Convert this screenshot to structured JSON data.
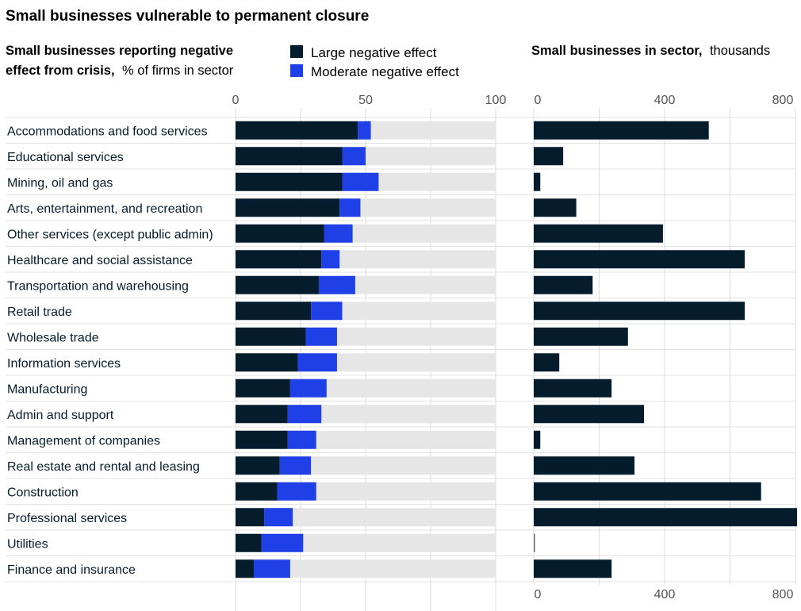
{
  "chart_data": {
    "title": "Small businesses vulnerable to permanent closure",
    "type": "bar",
    "categories": [
      "Accommodations and food services",
      "Educational services",
      "Mining, oil and gas",
      "Arts, entertainment, and recreation",
      "Other services (except public admin)",
      "Healthcare and social assistance",
      "Transportation and warehousing",
      "Retail trade",
      "Wholesale trade",
      "Information services",
      "Manufacturing",
      "Admin and support",
      "Management of companies",
      "Real estate and rental and leasing",
      "Construction",
      "Professional services",
      "Utilities",
      "Finance and insurance"
    ],
    "left_panel": {
      "title_bold": "Small businesses reporting negative effect from crisis,",
      "title_line1": "Small businesses reporting negative",
      "title_line2_bold": "effect from crisis,",
      "title_line2_normal": "% of firms in sector",
      "xlim": [
        0,
        100
      ],
      "ticks": [
        "0",
        "50",
        "100"
      ],
      "tick_values": [
        0,
        50,
        100
      ],
      "series": [
        {
          "name": "Large negative effect",
          "color": "#051c2c",
          "values": [
            47,
            41,
            41,
            40,
            34,
            33,
            32,
            29,
            27,
            24,
            21,
            20,
            20,
            17,
            16,
            11,
            10,
            7
          ]
        },
        {
          "name": "Moderate negative effect",
          "color": "#1f40e6",
          "values": [
            5,
            9,
            14,
            8,
            11,
            7,
            14,
            12,
            12,
            15,
            14,
            13,
            11,
            12,
            15,
            11,
            16,
            14
          ]
        }
      ],
      "background_color": "#e6e6e6"
    },
    "right_panel": {
      "title_bold": "Small businesses in sector,",
      "title_normal": "thousands",
      "xlim": [
        0,
        800
      ],
      "ticks": [
        "0",
        "400",
        "800"
      ],
      "tick_values": [
        0,
        400,
        800
      ],
      "color": "#051c2c",
      "values": [
        535,
        90,
        20,
        130,
        395,
        645,
        180,
        645,
        288,
        78,
        238,
        337,
        20,
        308,
        695,
        805,
        4,
        238
      ]
    },
    "grid": true,
    "legend_position": "top-center"
  }
}
